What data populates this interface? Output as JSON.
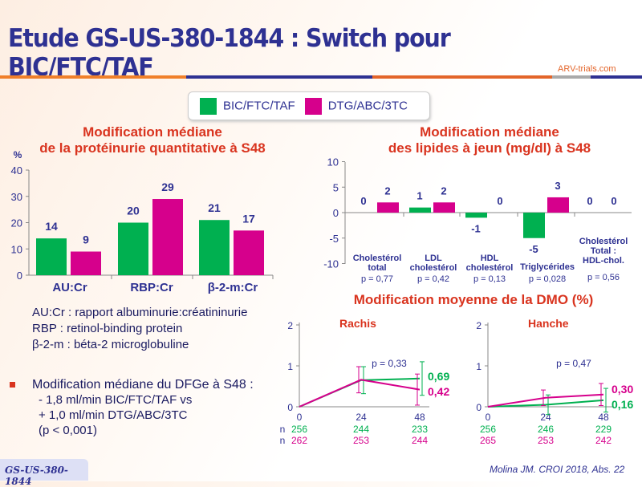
{
  "title": "Etude GS-US-380-1844 : Switch pour BIC/FTC/TAF",
  "logo": "ARV-trials.com",
  "legend": {
    "items": [
      {
        "label": "BIC/FTC/TAF",
        "color": "#00b050"
      },
      {
        "label": "DTG/ABC/3TC",
        "color": "#d6008c"
      }
    ]
  },
  "colors": {
    "green": "#00b050",
    "magenta": "#d6008c",
    "navy": "#2e3192",
    "red": "#d9341f"
  },
  "chart_data": [
    {
      "type": "bar",
      "title_l1": "Modification médiane",
      "title_l2": "de la protéinurie quantitative à S48",
      "ylabel": "%",
      "ylim": [
        0,
        40
      ],
      "yticks": [
        0,
        10,
        20,
        30,
        40
      ],
      "categories": [
        "AU:Cr",
        "RBP:Cr",
        "β-2-m:Cr"
      ],
      "series": [
        {
          "name": "BIC/FTC/TAF",
          "values": [
            14,
            20,
            21
          ]
        },
        {
          "name": "DTG/ABC/3TC",
          "values": [
            9,
            29,
            17
          ]
        }
      ]
    },
    {
      "type": "bar",
      "title_l1": "Modification médiane",
      "title_l2": "des lipides à jeun (mg/dl) à S48",
      "ylim": [
        -10,
        10
      ],
      "yticks": [
        -10,
        -5,
        0,
        5,
        10
      ],
      "categories": [
        [
          "Cholestérol",
          "total"
        ],
        [
          "LDL",
          "cholestérol"
        ],
        [
          "HDL",
          "cholestérol"
        ],
        [
          "Triglycérides"
        ],
        [
          "Cholestérol",
          "Total :",
          "HDL-chol."
        ]
      ],
      "pvalues": [
        "p = 0,77",
        "p = 0,42",
        "p = 0,13",
        "p = 0,028",
        "p = 0,56"
      ],
      "series": [
        {
          "name": "BIC/FTC/TAF",
          "values": [
            0,
            1,
            -1,
            -5,
            0
          ]
        },
        {
          "name": "DTG/ABC/3TC",
          "values": [
            2,
            2,
            0,
            3,
            0
          ]
        }
      ]
    },
    {
      "type": "line",
      "section_title": "Modification moyenne de la DMO (%)",
      "title": "Rachis",
      "x": [
        0,
        24,
        48
      ],
      "ylim": [
        0,
        2
      ],
      "yticks": [
        0,
        1,
        2
      ],
      "p": "p = 0,33",
      "series": [
        {
          "name": "BIC/FTC/TAF",
          "values": [
            0,
            0.65,
            0.69
          ],
          "err": [
            0,
            0.33,
            0.41
          ],
          "end_label": "0,69",
          "n": [
            "256",
            "244",
            "233"
          ]
        },
        {
          "name": "DTG/ABC/3TC",
          "values": [
            0,
            0.66,
            0.42
          ],
          "err": [
            0,
            0.32,
            0.38
          ],
          "end_label": "0,42",
          "n": [
            "262",
            "253",
            "244"
          ]
        }
      ]
    },
    {
      "type": "line",
      "title": "Hanche",
      "x": [
        0,
        24,
        48
      ],
      "ylim": [
        0,
        2
      ],
      "yticks": [
        0,
        1,
        2
      ],
      "p": "p = 0,47",
      "series": [
        {
          "name": "BIC/FTC/TAF",
          "values": [
            0,
            0.05,
            0.16
          ],
          "err": [
            0,
            0.24,
            0.29
          ],
          "end_label": "0,16",
          "n": [
            "256",
            "246",
            "229"
          ]
        },
        {
          "name": "DTG/ABC/3TC",
          "values": [
            0,
            0.22,
            0.3
          ],
          "err": [
            0,
            0.19,
            0.27
          ],
          "end_label": "0,30",
          "n": [
            "265",
            "253",
            "242"
          ]
        }
      ]
    }
  ],
  "n_label": "n",
  "notes": [
    "AU:Cr : rapport albuminurie:créatininurie",
    "RBP : retinol-binding protein",
    "β-2-m : béta-2 microglobuline"
  ],
  "dfge": {
    "heading": "Modification médiane du DFGe à S48 :",
    "lines": [
      "- 1,8 ml/min BIC/FTC/TAF vs",
      "+ 1,0 ml/min DTG/ABC/3TC",
      "(p < 0,001)"
    ]
  },
  "badge": "GS-US-380-1844",
  "reference": "Molina JM. CROI 2018, Abs. 22"
}
